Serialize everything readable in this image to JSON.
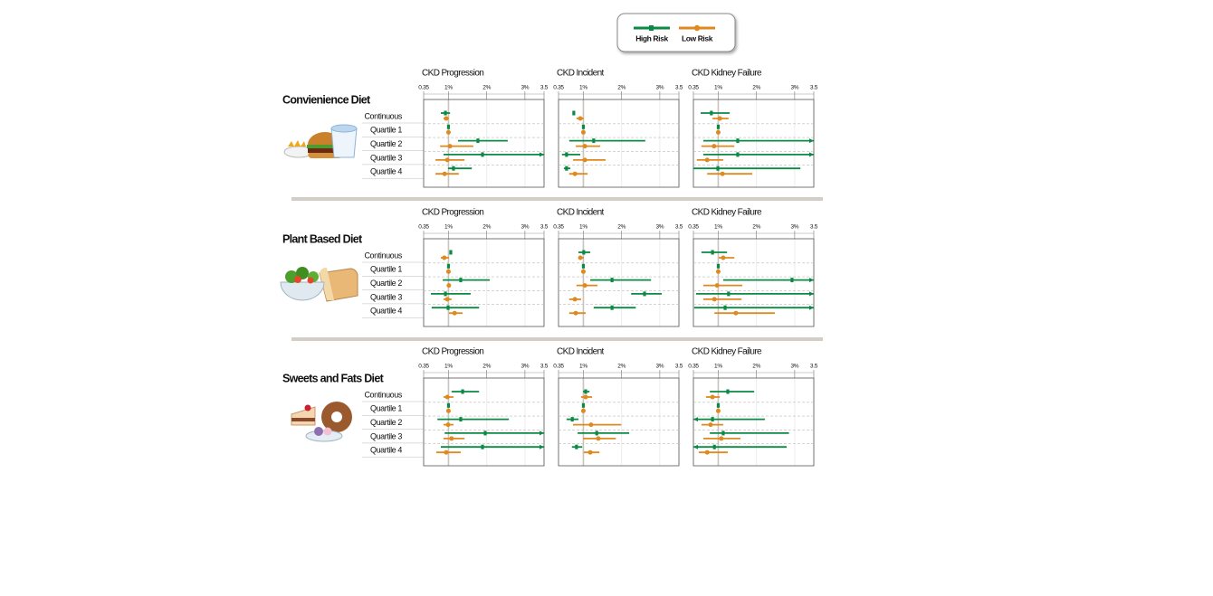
{
  "chart_data": [
    {
      "type": "forest",
      "title": "Convienience Diet",
      "categories": [
        "Continuous",
        "Quartile 1",
        "Quartile 2",
        "Quartile 3",
        "Quartile 4"
      ],
      "xlim": [
        0.35,
        3.5
      ],
      "xticks": [
        0.35,
        {
          "value": 1,
          "label": "1%"
        },
        {
          "value": 2,
          "label": "2%"
        },
        {
          "value": 3,
          "label": "3%"
        },
        3.5
      ],
      "panels": [
        {
          "title": "CKD Progression",
          "series": [
            {
              "name": "High Risk",
              "color": "#0b8a44",
              "values": [
                0.92,
                1,
                1.77,
                1.89,
                1.13
              ],
              "lower": [
                0.8,
                null,
                1.25,
                0.87,
                0.99
              ],
              "upper": [
                1.04,
                null,
                2.55,
                3.8,
                1.61
              ]
            },
            {
              "name": "Low Risk",
              "color": "#e0891f",
              "values": [
                0.94,
                1,
                1.04,
                0.97,
                0.9
              ],
              "lower": [
                0.87,
                null,
                0.78,
                0.66,
                0.66
              ],
              "upper": [
                1.01,
                null,
                1.65,
                1.42,
                1.27
              ]
            }
          ]
        },
        {
          "title": "CKD Incident",
          "series": [
            {
              "name": "High Risk",
              "color": "#0b8a44",
              "values": [
                0.75,
                1,
                1.27,
                0.56,
                0.56
              ],
              "lower": [
                0.73,
                null,
                0.63,
                0.44,
                0.49
              ],
              "upper": [
                0.78,
                null,
                2.62,
                0.92,
                0.66
              ]
            },
            {
              "name": "Low Risk",
              "color": "#e0891f",
              "values": [
                0.92,
                1,
                1.04,
                1.04,
                0.78
              ],
              "lower": [
                0.82,
                null,
                0.8,
                0.73,
                0.63
              ],
              "upper": [
                1.01,
                null,
                1.44,
                1.58,
                1.11
              ]
            }
          ]
        },
        {
          "title": "CKD Kidney Failure",
          "series": [
            {
              "name": "High Risk",
              "color": "#0b8a44",
              "values": [
                0.82,
                1,
                1.51,
                1.51,
                0.99
              ],
              "lower": [
                0.54,
                null,
                0.61,
                0.61,
                0.35
              ],
              "upper": [
                1.3,
                null,
                3.8,
                3.8,
                3.15
              ]
            },
            {
              "name": "Low Risk",
              "color": "#e0891f",
              "values": [
                1.04,
                1,
                0.89,
                0.71,
                1.11
              ],
              "lower": [
                0.85,
                null,
                0.56,
                0.44,
                0.71
              ],
              "upper": [
                1.27,
                null,
                1.42,
                1.13,
                1.89
              ]
            }
          ]
        }
      ]
    },
    {
      "type": "forest",
      "title": "Plant Based Diet",
      "categories": [
        "Continuous",
        "Quartile 1",
        "Quartile 2",
        "Quartile 3",
        "Quartile 4"
      ],
      "xlim": [
        0.35,
        3.5
      ],
      "xticks": [
        0.35,
        {
          "value": 1,
          "label": "1%"
        },
        {
          "value": 2,
          "label": "2%"
        },
        {
          "value": 3,
          "label": "3%"
        },
        3.5
      ],
      "panels": [
        {
          "title": "CKD Progression",
          "series": [
            {
              "name": "High Risk",
              "color": "#0b8a44",
              "values": [
                1.06,
                1,
                1.32,
                0.92,
                0.99
              ],
              "lower": [
                1.03,
                null,
                0.85,
                0.54,
                0.56
              ],
              "upper": [
                1.08,
                null,
                2.08,
                1.58,
                1.8
              ]
            },
            {
              "name": "Low Risk",
              "color": "#e0891f",
              "values": [
                0.89,
                1,
                1.01,
                0.97,
                1.16
              ],
              "lower": [
                0.8,
                null,
                0.98,
                0.87,
                1.01
              ],
              "upper": [
                1.01,
                null,
                1.04,
                1.08,
                1.37
              ]
            }
          ]
        },
        {
          "title": "CKD Incident",
          "series": [
            {
              "name": "High Risk",
              "color": "#0b8a44",
              "values": [
                1.01,
                1,
                1.75,
                2.6,
                1.75
              ],
              "lower": [
                0.87,
                null,
                1.18,
                2.25,
                1.27
              ],
              "upper": [
                1.18,
                null,
                2.77,
                3.05,
                2.37
              ]
            },
            {
              "name": "Low Risk",
              "color": "#e0891f",
              "values": [
                0.92,
                1,
                1.04,
                0.78,
                0.8
              ],
              "lower": [
                0.87,
                null,
                0.82,
                0.63,
                0.63
              ],
              "upper": [
                1.01,
                null,
                1.37,
                0.94,
                1.06
              ]
            }
          ]
        },
        {
          "title": "CKD Kidney Failure",
          "series": [
            {
              "name": "High Risk",
              "color": "#0b8a44",
              "values": [
                0.85,
                1,
                2.93,
                1.27,
                1.18
              ],
              "lower": [
                0.56,
                null,
                1.13,
                0.42,
                0.37
              ],
              "upper": [
                1.23,
                null,
                3.8,
                3.8,
                3.8
              ]
            },
            {
              "name": "Low Risk",
              "color": "#e0891f",
              "values": [
                1.13,
                1,
                0.97,
                0.9,
                1.46
              ],
              "lower": [
                1.01,
                null,
                0.61,
                0.61,
                0.9
              ],
              "upper": [
                1.42,
                null,
                1.63,
                1.61,
                2.48
              ]
            }
          ]
        }
      ]
    },
    {
      "type": "forest",
      "title": "Sweets and Fats Diet",
      "categories": [
        "Continuous",
        "Quartile 1",
        "Quartile 2",
        "Quartile 3",
        "Quartile 4"
      ],
      "xlim": [
        0.35,
        3.5
      ],
      "xticks": [
        0.35,
        {
          "value": 1,
          "label": "1%"
        },
        {
          "value": 2,
          "label": "2%"
        },
        {
          "value": 3,
          "label": "3%"
        },
        3.5
      ],
      "panels": [
        {
          "title": "CKD Progression",
          "series": [
            {
              "name": "High Risk",
              "color": "#0b8a44",
              "values": [
                1.37,
                1,
                1.32,
                1.96,
                1.89
              ],
              "lower": [
                1.08,
                null,
                0.71,
                0.9,
                0.8
              ],
              "upper": [
                1.8,
                null,
                2.58,
                3.8,
                3.8
              ]
            },
            {
              "name": "Low Risk",
              "color": "#e0891f",
              "values": [
                0.97,
                1,
                0.99,
                1.08,
                0.94
              ],
              "lower": [
                0.87,
                null,
                0.87,
                0.87,
                0.68
              ],
              "upper": [
                1.13,
                null,
                1.13,
                1.42,
                1.32
              ]
            }
          ]
        },
        {
          "title": "CKD Incident",
          "series": [
            {
              "name": "High Risk",
              "color": "#0b8a44",
              "values": [
                1.06,
                1,
                0.71,
                1.35,
                0.82
              ],
              "lower": [
                0.99,
                null,
                0.56,
                0.85,
                0.7
              ],
              "upper": [
                1.16,
                null,
                0.87,
                2.2,
                0.97
              ]
            },
            {
              "name": "Low Risk",
              "color": "#e0891f",
              "values": [
                1.06,
                1,
                1.2,
                1.39,
                1.18
              ],
              "lower": [
                0.94,
                null,
                0.73,
                0.99,
                1.01
              ],
              "upper": [
                1.23,
                null,
                1.99,
                1.85,
                1.42
              ]
            }
          ]
        },
        {
          "title": "CKD Kidney Failure",
          "series": [
            {
              "name": "High Risk",
              "color": "#0b8a44",
              "values": [
                1.25,
                1,
                0.85,
                1.13,
                0.9
              ],
              "lower": [
                0.78,
                null,
                0.3,
                0.78,
                0.3
              ],
              "upper": [
                1.94,
                null,
                2.22,
                2.85,
                2.79
              ]
            },
            {
              "name": "Low Risk",
              "color": "#e0891f",
              "values": [
                0.85,
                1,
                0.8,
                1.08,
                0.71
              ],
              "lower": [
                0.68,
                null,
                0.56,
                0.61,
                0.49
              ],
              "upper": [
                1.04,
                null,
                1.13,
                1.58,
                1.25
              ]
            }
          ]
        }
      ]
    }
  ]
}
